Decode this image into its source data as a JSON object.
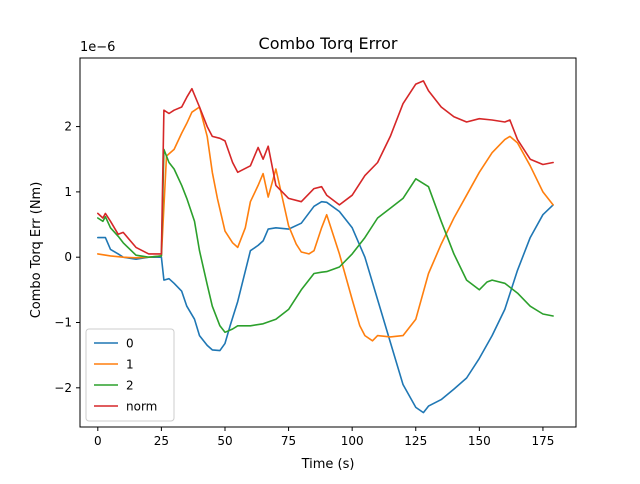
{
  "chart_data": {
    "type": "line",
    "title": "Combo Torq Error",
    "xlabel": "Time (s)",
    "ylabel": "Combo Torq Err (Nm)",
    "y_scale_label": "1e−6",
    "xlim": [
      -7,
      188
    ],
    "ylim": [
      -2.6,
      3.05
    ],
    "xticks": [
      0,
      25,
      50,
      75,
      100,
      125,
      150,
      175
    ],
    "yticks": [
      -2,
      -1,
      0,
      1,
      2
    ],
    "ytick_labels": [
      "−2",
      "−1",
      "0",
      "1",
      "2"
    ],
    "grid": false,
    "legend_position": "lower-left",
    "series": [
      {
        "name": "0",
        "color": "#1f77b4",
        "x": [
          0,
          3,
          5,
          8,
          10,
          15,
          20,
          25,
          26,
          28,
          30,
          33,
          35,
          38,
          40,
          43,
          45,
          48,
          50,
          52,
          55,
          60,
          63,
          65,
          67,
          70,
          75,
          80,
          85,
          88,
          90,
          95,
          100,
          105,
          110,
          115,
          120,
          125,
          128,
          130,
          135,
          140,
          145,
          150,
          155,
          160,
          165,
          170,
          175,
          179
        ],
        "y": [
          0.3,
          0.3,
          0.12,
          0.05,
          0.0,
          -0.03,
          0.0,
          0.0,
          -0.35,
          -0.33,
          -0.4,
          -0.52,
          -0.75,
          -0.95,
          -1.2,
          -1.35,
          -1.42,
          -1.43,
          -1.32,
          -1.05,
          -0.68,
          0.1,
          0.18,
          0.25,
          0.43,
          0.45,
          0.43,
          0.52,
          0.78,
          0.85,
          0.84,
          0.7,
          0.45,
          0.0,
          -0.65,
          -1.3,
          -1.95,
          -2.3,
          -2.38,
          -2.28,
          -2.18,
          -2.02,
          -1.85,
          -1.55,
          -1.2,
          -0.8,
          -0.2,
          0.3,
          0.65,
          0.8
        ]
      },
      {
        "name": "1",
        "color": "#ff7f0e",
        "x": [
          0,
          5,
          10,
          15,
          20,
          25,
          27,
          30,
          33,
          35,
          37,
          40,
          43,
          45,
          47,
          50,
          53,
          55,
          58,
          60,
          63,
          65,
          67,
          70,
          75,
          78,
          80,
          83,
          85,
          88,
          90,
          95,
          100,
          103,
          105,
          108,
          110,
          115,
          120,
          125,
          130,
          135,
          140,
          145,
          150,
          155,
          160,
          162,
          165,
          170,
          175,
          179
        ],
        "y": [
          0.05,
          0.02,
          0.0,
          -0.01,
          0.0,
          0.02,
          1.55,
          1.65,
          1.9,
          2.05,
          2.22,
          2.3,
          1.85,
          1.3,
          0.9,
          0.4,
          0.22,
          0.15,
          0.45,
          0.85,
          1.1,
          1.28,
          0.92,
          1.35,
          0.48,
          0.2,
          0.08,
          0.05,
          0.1,
          0.45,
          0.65,
          0.05,
          -0.65,
          -1.05,
          -1.2,
          -1.28,
          -1.2,
          -1.22,
          -1.2,
          -0.95,
          -0.25,
          0.2,
          0.6,
          0.95,
          1.3,
          1.6,
          1.8,
          1.85,
          1.75,
          1.4,
          1.0,
          0.8
        ]
      },
      {
        "name": "2",
        "color": "#2ca02c",
        "x": [
          0,
          2,
          3,
          5,
          8,
          10,
          15,
          20,
          25,
          26,
          28,
          30,
          33,
          35,
          38,
          40,
          43,
          45,
          48,
          50,
          53,
          55,
          60,
          65,
          70,
          75,
          80,
          85,
          88,
          90,
          95,
          100,
          105,
          110,
          115,
          120,
          125,
          130,
          135,
          140,
          145,
          150,
          153,
          155,
          160,
          165,
          170,
          175,
          179
        ],
        "y": [
          0.6,
          0.55,
          0.62,
          0.45,
          0.32,
          0.22,
          0.03,
          0.0,
          0.02,
          1.65,
          1.45,
          1.35,
          1.1,
          0.9,
          0.55,
          0.1,
          -0.42,
          -0.75,
          -1.05,
          -1.15,
          -1.1,
          -1.05,
          -1.05,
          -1.02,
          -0.95,
          -0.8,
          -0.5,
          -0.25,
          -0.23,
          -0.22,
          -0.15,
          0.05,
          0.3,
          0.6,
          0.75,
          0.9,
          1.2,
          1.08,
          0.55,
          0.05,
          -0.35,
          -0.5,
          -0.38,
          -0.35,
          -0.4,
          -0.55,
          -0.75,
          -0.87,
          -0.9
        ]
      },
      {
        "name": "norm",
        "color": "#d62728",
        "x": [
          0,
          2,
          3,
          5,
          8,
          10,
          15,
          20,
          25,
          26,
          28,
          30,
          33,
          35,
          37,
          40,
          43,
          45,
          48,
          50,
          53,
          55,
          60,
          63,
          65,
          67,
          70,
          75,
          80,
          85,
          88,
          90,
          95,
          100,
          105,
          110,
          115,
          120,
          125,
          128,
          130,
          135,
          140,
          145,
          150,
          155,
          160,
          162,
          165,
          170,
          175,
          179
        ],
        "y": [
          0.67,
          0.6,
          0.67,
          0.55,
          0.35,
          0.38,
          0.15,
          0.05,
          0.05,
          2.25,
          2.2,
          2.25,
          2.3,
          2.45,
          2.58,
          2.3,
          2.0,
          1.85,
          1.82,
          1.78,
          1.45,
          1.3,
          1.4,
          1.68,
          1.5,
          1.7,
          1.1,
          0.9,
          0.85,
          1.05,
          1.08,
          0.95,
          0.8,
          0.95,
          1.25,
          1.45,
          1.85,
          2.35,
          2.65,
          2.7,
          2.55,
          2.3,
          2.15,
          2.07,
          2.12,
          2.1,
          2.07,
          2.1,
          1.8,
          1.5,
          1.42,
          1.45
        ]
      }
    ]
  }
}
